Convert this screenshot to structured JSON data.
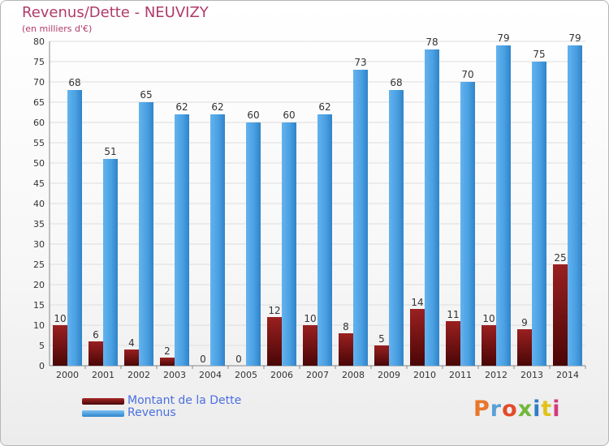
{
  "header": {
    "title": "Revenus/Dette - NEUVIZY",
    "subtitle": "(en milliers d'€)"
  },
  "legend": {
    "dette_label": "Montant de la Dette",
    "revenus_label": "Revenus"
  },
  "brand": {
    "text": "Proxiti",
    "colors": [
      "#e8762b",
      "#5a9fd4",
      "#e34b2a",
      "#70b83c",
      "#2f7fc6",
      "#e2c21a",
      "#d33b7d"
    ]
  },
  "colors": {
    "dette": "#7a1515",
    "revenus": "#4ea3e4",
    "axis_text": "#333333",
    "grid": "#dddddd"
  },
  "chart_data": {
    "type": "bar",
    "title": "Revenus/Dette - NEUVIZY",
    "subtitle": "(en milliers d'€)",
    "categories": [
      "2000",
      "2001",
      "2002",
      "2003",
      "2004",
      "2005",
      "2006",
      "2007",
      "2008",
      "2009",
      "2010",
      "2011",
      "2012",
      "2013",
      "2014"
    ],
    "series": [
      {
        "name": "Montant de la Dette",
        "values": [
          10,
          6,
          4,
          2,
          0,
          0,
          12,
          10,
          8,
          5,
          14,
          11,
          10,
          9,
          25
        ]
      },
      {
        "name": "Revenus",
        "values": [
          68,
          51,
          65,
          62,
          62,
          60,
          60,
          62,
          73,
          68,
          78,
          70,
          79,
          75,
          79
        ]
      }
    ],
    "ylim": [
      0,
      80
    ],
    "yticks": [
      0,
      5,
      10,
      15,
      20,
      25,
      30,
      35,
      40,
      45,
      50,
      55,
      60,
      65,
      70,
      75,
      80
    ],
    "grid": true,
    "legend_position": "bottom-left"
  }
}
